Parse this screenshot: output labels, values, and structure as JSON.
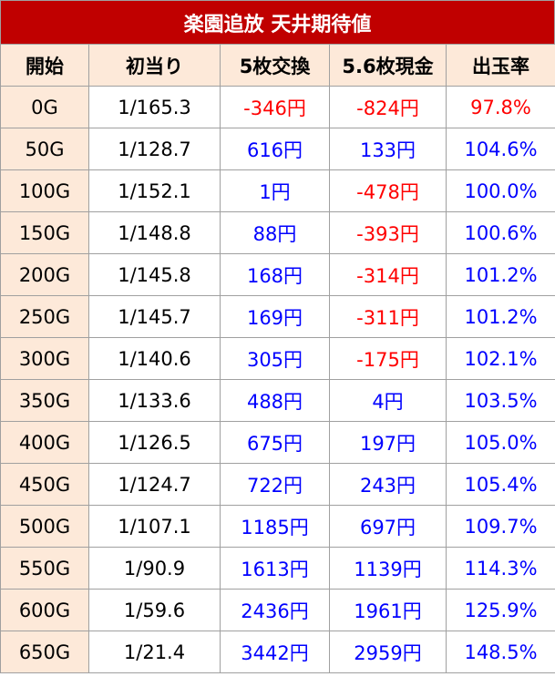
{
  "title": "楽園追放 天井期待値",
  "headers": [
    "開始",
    "初当り",
    "5枚交換",
    "5.6枚現金",
    "出玉率"
  ],
  "colors": {
    "title_bg": "#c00000",
    "header_bg": "#fde9d9",
    "negative": "#ff0000",
    "positive": "#0000ff"
  },
  "rows": [
    {
      "start": "0G",
      "first": "1/165.3",
      "ex5": "-346円",
      "cash56": "-824円",
      "rate": "97.8%"
    },
    {
      "start": "50G",
      "first": "1/128.7",
      "ex5": "616円",
      "cash56": "133円",
      "rate": "104.6%"
    },
    {
      "start": "100G",
      "first": "1/152.1",
      "ex5": "1円",
      "cash56": "-478円",
      "rate": "100.0%"
    },
    {
      "start": "150G",
      "first": "1/148.8",
      "ex5": "88円",
      "cash56": "-393円",
      "rate": "100.6%"
    },
    {
      "start": "200G",
      "first": "1/145.8",
      "ex5": "168円",
      "cash56": "-314円",
      "rate": "101.2%"
    },
    {
      "start": "250G",
      "first": "1/145.7",
      "ex5": "169円",
      "cash56": "-311円",
      "rate": "101.2%"
    },
    {
      "start": "300G",
      "first": "1/140.6",
      "ex5": "305円",
      "cash56": "-175円",
      "rate": "102.1%"
    },
    {
      "start": "350G",
      "first": "1/133.6",
      "ex5": "488円",
      "cash56": "4円",
      "rate": "103.5%"
    },
    {
      "start": "400G",
      "first": "1/126.5",
      "ex5": "675円",
      "cash56": "197円",
      "rate": "105.0%"
    },
    {
      "start": "450G",
      "first": "1/124.7",
      "ex5": "722円",
      "cash56": "243円",
      "rate": "105.4%"
    },
    {
      "start": "500G",
      "first": "1/107.1",
      "ex5": "1185円",
      "cash56": "697円",
      "rate": "109.7%"
    },
    {
      "start": "550G",
      "first": "1/90.9",
      "ex5": "1613円",
      "cash56": "1139円",
      "rate": "114.3%"
    },
    {
      "start": "600G",
      "first": "1/59.6",
      "ex5": "2436円",
      "cash56": "1961円",
      "rate": "125.9%"
    },
    {
      "start": "650G",
      "first": "1/21.4",
      "ex5": "3442円",
      "cash56": "2959円",
      "rate": "148.5%"
    }
  ]
}
